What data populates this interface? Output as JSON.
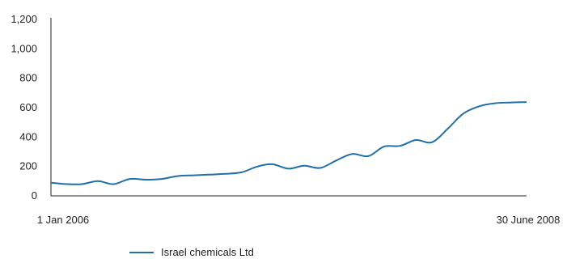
{
  "chart_data": {
    "type": "line",
    "title": "",
    "xlabel": "",
    "ylabel": "",
    "x_tick_labels": [
      "1 Jan 2006",
      "30 June 2008"
    ],
    "ylim": [
      0,
      1200
    ],
    "y_ticks": [
      0,
      200,
      400,
      600,
      800,
      1000,
      1200
    ],
    "y_tick_labels": [
      "0",
      "200",
      "400",
      "600",
      "800",
      "1,000",
      "1,200"
    ],
    "grid": false,
    "legend_position": "bottom-left",
    "series": [
      {
        "name": "Israel chemicals Ltd",
        "color": "#1f6fa8",
        "x": [
          "2006-01-01",
          "2006-02-01",
          "2006-03-01",
          "2006-04-01",
          "2006-05-01",
          "2006-06-01",
          "2006-07-01",
          "2006-08-01",
          "2006-09-01",
          "2006-10-01",
          "2006-11-01",
          "2006-12-01",
          "2007-01-01",
          "2007-02-01",
          "2007-03-01",
          "2007-04-01",
          "2007-05-01",
          "2007-06-01",
          "2007-07-01",
          "2007-08-01",
          "2007-09-01",
          "2007-10-01",
          "2007-11-01",
          "2007-12-01",
          "2008-01-01",
          "2008-02-01",
          "2008-03-01",
          "2008-04-01",
          "2008-05-01",
          "2008-06-01",
          "2008-06-30"
        ],
        "values": [
          90,
          80,
          80,
          100,
          80,
          115,
          110,
          115,
          135,
          140,
          145,
          150,
          160,
          200,
          215,
          185,
          205,
          190,
          240,
          285,
          270,
          335,
          340,
          380,
          365,
          460,
          560,
          610,
          630,
          635,
          638
        ]
      }
    ]
  }
}
